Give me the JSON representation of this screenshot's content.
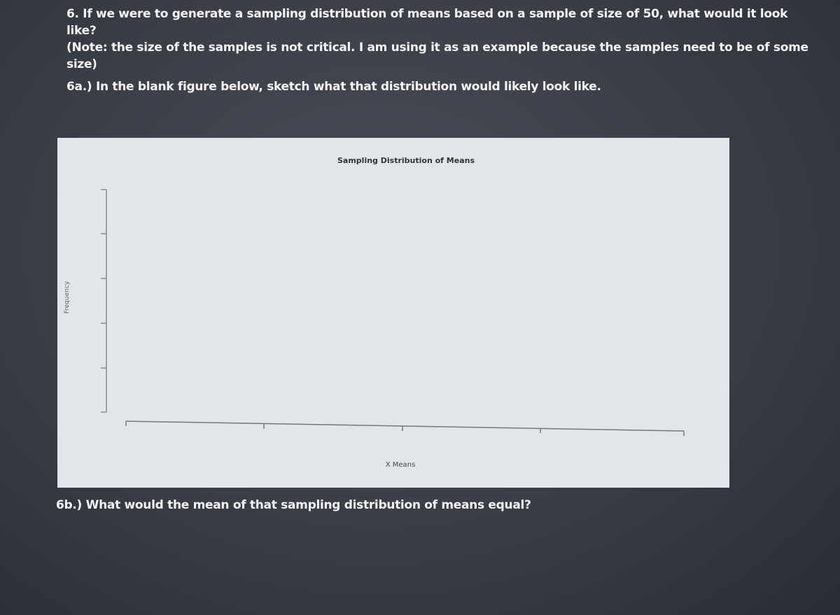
{
  "question": "6. If we were to generate a sampling distribution of means based on a sample of size of 50, what would it look like?",
  "note": "(Note: the size of the samples is not critical. I am using it as an example because the samples need to be of some size)",
  "part_a": "6a.) In the blank figure below, sketch what that distribution would likely look like.",
  "figure": {
    "title": "Sampling Distribution of Means",
    "x_label": "X Means",
    "y_label": "Frequency"
  },
  "part_b": "6b.) What would the mean of that sampling distribution of means equal?"
}
